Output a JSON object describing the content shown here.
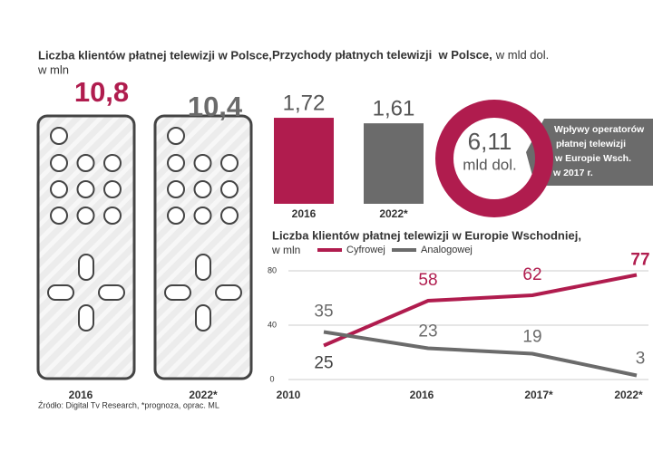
{
  "chart_data": [
    {
      "type": "pictogram",
      "title": "Liczba klientów płatnej telewizji w Polsce,",
      "subtitle": "w mln",
      "categories": [
        "2016",
        "2022*"
      ],
      "values": [
        10.8,
        10.4
      ],
      "value_labels": [
        "10,8",
        "10,4"
      ],
      "colors": [
        "#b01c4e",
        "#6b6b6b"
      ]
    },
    {
      "type": "bar",
      "title": "Przychody płatnych telewizji  w Polsce,",
      "subtitle": "w mld dol.",
      "categories": [
        "2016",
        "2022*"
      ],
      "values": [
        1.72,
        1.61
      ],
      "value_labels": [
        "1,72",
        "1,61"
      ],
      "colors": [
        "#b01c4e",
        "#6b6b6b"
      ]
    },
    {
      "type": "donut",
      "value": 6.11,
      "value_label": "6,11",
      "unit": "mld dol.",
      "color": "#b01c4e",
      "annotation": [
        "Wpływy operatorów",
        "płatnej telewizji",
        "w Europie Wsch.",
        "w 2017 r."
      ]
    },
    {
      "type": "line",
      "title": "Liczba klientów płatnej telewizji w Europie Wschodniej,",
      "subtitle": "w mln",
      "categories": [
        "2010",
        "2016",
        "2017*",
        "2022*"
      ],
      "series": [
        {
          "name": "Cyfrowej",
          "color": "#b01c4e",
          "values": [
            25,
            58,
            62,
            77
          ]
        },
        {
          "name": "Analogowej",
          "color": "#6b6b6b",
          "values": [
            35,
            23,
            19,
            3
          ]
        }
      ],
      "ylim": [
        0,
        80
      ],
      "yticks": [
        0,
        40,
        80
      ],
      "grid": true
    }
  ],
  "source": "Źródło: Digital Tv Research, *prognoza, oprac. ML"
}
